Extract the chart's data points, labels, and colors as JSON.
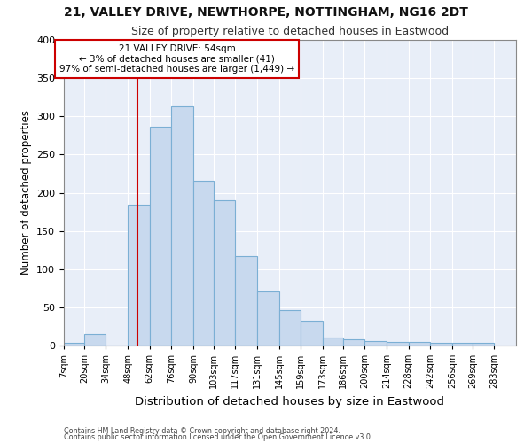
{
  "title1": "21, VALLEY DRIVE, NEWTHORPE, NOTTINGHAM, NG16 2DT",
  "title2": "Size of property relative to detached houses in Eastwood",
  "xlabel": "Distribution of detached houses by size in Eastwood",
  "ylabel": "Number of detached properties",
  "footnote1": "Contains HM Land Registry data © Crown copyright and database right 2024.",
  "footnote2": "Contains public sector information licensed under the Open Government Licence v3.0.",
  "annotation_title": "21 VALLEY DRIVE: 54sqm",
  "annotation_line1": "← 3% of detached houses are smaller (41)",
  "annotation_line2": "97% of semi-detached houses are larger (1,449) →",
  "property_line_x": 54,
  "bar_color": "#c8d9ee",
  "bar_edgecolor": "#7bafd4",
  "vline_color": "#cc0000",
  "annotation_box_edgecolor": "#cc0000",
  "fig_facecolor": "#ffffff",
  "plot_facecolor": "#e8eef8",
  "grid_color": "#ffffff",
  "bins_left": [
    7,
    20,
    34,
    48,
    62,
    76,
    90,
    103,
    117,
    131,
    145,
    159,
    173,
    186,
    200,
    214,
    228,
    242,
    256,
    269
  ],
  "bin_widths": [
    13,
    14,
    14,
    14,
    14,
    14,
    13,
    14,
    14,
    14,
    14,
    14,
    13,
    14,
    14,
    14,
    14,
    14,
    13,
    14
  ],
  "bin_labels": [
    "7sqm",
    "20sqm",
    "34sqm",
    "48sqm",
    "62sqm",
    "76sqm",
    "90sqm",
    "103sqm",
    "117sqm",
    "131sqm",
    "145sqm",
    "159sqm",
    "173sqm",
    "186sqm",
    "200sqm",
    "214sqm",
    "228sqm",
    "242sqm",
    "256sqm",
    "269sqm",
    "283sqm"
  ],
  "values": [
    3,
    15,
    0,
    184,
    286,
    313,
    216,
    190,
    117,
    71,
    46,
    33,
    11,
    8,
    6,
    5,
    5,
    3,
    3,
    4
  ],
  "xlim_left": 7,
  "xlim_right": 297,
  "ylim": [
    0,
    400
  ],
  "yticks": [
    0,
    50,
    100,
    150,
    200,
    250,
    300,
    350,
    400
  ]
}
